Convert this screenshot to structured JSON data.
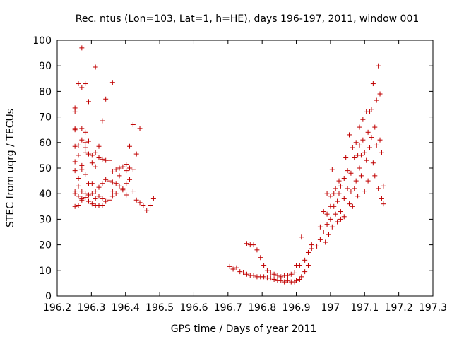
{
  "chart_data": {
    "type": "scatter",
    "title": "Rec. ntus (Lon=103, Lat=1, h=HE), days 196-197, 2011, window 001",
    "xlabel": "GPS time / Days of year 2011",
    "ylabel": "STEC from uqrg / TECUs",
    "xlim": [
      196.2,
      197.3
    ],
    "ylim": [
      0,
      100
    ],
    "xticks": [
      "196.2",
      "196.3",
      "196.4",
      "196.5",
      "196.6",
      "196.7",
      "196.8",
      "196.9",
      "197",
      "197.1",
      "197.2",
      "197.3"
    ],
    "yticks": [
      "0",
      "10",
      "20",
      "30",
      "40",
      "50",
      "60",
      "70",
      "80",
      "90",
      "100"
    ],
    "grid": false,
    "legend": "none",
    "marker": "+",
    "color": "#c00000",
    "points": [
      [
        196.252,
        73.5
      ],
      [
        196.252,
        72
      ],
      [
        196.252,
        65.5
      ],
      [
        196.252,
        65
      ],
      [
        196.252,
        58.5
      ],
      [
        196.252,
        52.5
      ],
      [
        196.252,
        49
      ],
      [
        196.252,
        41
      ],
      [
        196.252,
        40
      ],
      [
        196.252,
        35
      ],
      [
        196.262,
        83
      ],
      [
        196.262,
        59
      ],
      [
        196.262,
        55
      ],
      [
        196.262,
        46
      ],
      [
        196.262,
        43
      ],
      [
        196.262,
        39
      ],
      [
        196.262,
        35.5
      ],
      [
        196.272,
        97
      ],
      [
        196.272,
        81.5
      ],
      [
        196.272,
        65.5
      ],
      [
        196.272,
        61
      ],
      [
        196.272,
        51
      ],
      [
        196.272,
        49.5
      ],
      [
        196.272,
        41
      ],
      [
        196.272,
        38
      ],
      [
        196.272,
        37.5
      ],
      [
        196.282,
        83
      ],
      [
        196.282,
        64
      ],
      [
        196.282,
        60
      ],
      [
        196.282,
        58
      ],
      [
        196.282,
        56
      ],
      [
        196.282,
        47.5
      ],
      [
        196.282,
        40
      ],
      [
        196.282,
        38.5
      ],
      [
        196.292,
        76
      ],
      [
        196.292,
        60.5
      ],
      [
        196.292,
        55.5
      ],
      [
        196.292,
        44
      ],
      [
        196.292,
        39.5
      ],
      [
        196.292,
        37
      ],
      [
        196.302,
        55
      ],
      [
        196.302,
        52
      ],
      [
        196.302,
        44
      ],
      [
        196.302,
        40
      ],
      [
        196.302,
        36
      ],
      [
        196.312,
        89.5
      ],
      [
        196.312,
        56
      ],
      [
        196.312,
        50.5
      ],
      [
        196.312,
        41
      ],
      [
        196.312,
        38
      ],
      [
        196.312,
        35.5
      ],
      [
        196.322,
        58.5
      ],
      [
        196.322,
        54
      ],
      [
        196.322,
        42.5
      ],
      [
        196.322,
        39
      ],
      [
        196.322,
        35.5
      ],
      [
        196.332,
        68.5
      ],
      [
        196.332,
        53.5
      ],
      [
        196.332,
        44
      ],
      [
        196.332,
        38
      ],
      [
        196.332,
        35.5
      ],
      [
        196.342,
        77
      ],
      [
        196.342,
        53
      ],
      [
        196.342,
        45.5
      ],
      [
        196.342,
        37
      ],
      [
        196.352,
        53
      ],
      [
        196.352,
        45
      ],
      [
        196.352,
        37.5
      ],
      [
        196.362,
        83.5
      ],
      [
        196.362,
        48.5
      ],
      [
        196.362,
        44.5
      ],
      [
        196.362,
        41
      ],
      [
        196.362,
        39
      ],
      [
        196.372,
        49.5
      ],
      [
        196.372,
        44
      ],
      [
        196.372,
        40
      ],
      [
        196.382,
        50
      ],
      [
        196.382,
        47
      ],
      [
        196.382,
        43
      ],
      [
        196.392,
        50.5
      ],
      [
        196.392,
        42
      ],
      [
        196.392,
        41.5
      ],
      [
        196.402,
        51.5
      ],
      [
        196.402,
        49
      ],
      [
        196.402,
        44
      ],
      [
        196.402,
        39.5
      ],
      [
        196.412,
        58.5
      ],
      [
        196.412,
        50
      ],
      [
        196.412,
        45.5
      ],
      [
        196.422,
        67
      ],
      [
        196.422,
        49.5
      ],
      [
        196.422,
        41
      ],
      [
        196.432,
        55.5
      ],
      [
        196.432,
        37.5
      ],
      [
        196.442,
        65.5
      ],
      [
        196.442,
        36.5
      ],
      [
        196.452,
        35.5
      ],
      [
        196.462,
        33.5
      ],
      [
        196.472,
        35.5
      ],
      [
        196.482,
        38
      ],
      [
        196.705,
        11.5
      ],
      [
        196.715,
        10.5
      ],
      [
        196.725,
        11
      ],
      [
        196.735,
        9.5
      ],
      [
        196.745,
        9
      ],
      [
        196.755,
        20.5
      ],
      [
        196.755,
        8.5
      ],
      [
        196.765,
        20
      ],
      [
        196.765,
        8
      ],
      [
        196.775,
        20
      ],
      [
        196.775,
        8
      ],
      [
        196.785,
        18
      ],
      [
        196.785,
        7.5
      ],
      [
        196.795,
        15
      ],
      [
        196.795,
        7.5
      ],
      [
        196.805,
        12
      ],
      [
        196.805,
        7.5
      ],
      [
        196.815,
        10
      ],
      [
        196.815,
        7
      ],
      [
        196.825,
        9
      ],
      [
        196.825,
        7
      ],
      [
        196.835,
        8.5
      ],
      [
        196.835,
        6.5
      ],
      [
        196.845,
        8
      ],
      [
        196.845,
        6
      ],
      [
        196.855,
        7.5
      ],
      [
        196.855,
        6
      ],
      [
        196.865,
        8
      ],
      [
        196.865,
        5.5
      ],
      [
        196.875,
        8
      ],
      [
        196.875,
        6
      ],
      [
        196.885,
        8.5
      ],
      [
        196.885,
        5.5
      ],
      [
        196.895,
        9
      ],
      [
        196.895,
        5.5
      ],
      [
        196.9,
        12
      ],
      [
        196.9,
        6
      ],
      [
        196.91,
        12
      ],
      [
        196.91,
        6.5
      ],
      [
        196.915,
        23
      ],
      [
        196.915,
        7.5
      ],
      [
        196.925,
        14
      ],
      [
        196.925,
        9.5
      ],
      [
        196.935,
        17
      ],
      [
        196.935,
        12
      ],
      [
        196.945,
        20
      ],
      [
        196.945,
        18.5
      ],
      [
        196.96,
        19.5
      ],
      [
        196.97,
        27
      ],
      [
        196.97,
        22
      ],
      [
        196.98,
        33
      ],
      [
        196.98,
        25
      ],
      [
        196.985,
        21
      ],
      [
        196.99,
        40
      ],
      [
        196.99,
        32
      ],
      [
        196.99,
        28
      ],
      [
        196.995,
        24
      ],
      [
        197.0,
        39
      ],
      [
        197.0,
        35
      ],
      [
        197.0,
        30
      ],
      [
        197.005,
        49.5
      ],
      [
        197.005,
        27
      ],
      [
        197.01,
        40
      ],
      [
        197.01,
        35
      ],
      [
        197.015,
        42
      ],
      [
        197.015,
        32
      ],
      [
        197.02,
        37
      ],
      [
        197.02,
        29
      ],
      [
        197.025,
        45
      ],
      [
        197.025,
        40
      ],
      [
        197.03,
        43
      ],
      [
        197.03,
        33
      ],
      [
        197.03,
        30
      ],
      [
        197.04,
        46
      ],
      [
        197.04,
        38
      ],
      [
        197.04,
        31
      ],
      [
        197.045,
        54
      ],
      [
        197.05,
        49
      ],
      [
        197.05,
        42
      ],
      [
        197.055,
        63
      ],
      [
        197.055,
        36
      ],
      [
        197.06,
        48
      ],
      [
        197.06,
        41
      ],
      [
        197.065,
        58
      ],
      [
        197.065,
        35
      ],
      [
        197.07,
        54
      ],
      [
        197.07,
        42
      ],
      [
        197.075,
        60
      ],
      [
        197.075,
        45
      ],
      [
        197.08,
        55
      ],
      [
        197.08,
        39
      ],
      [
        197.085,
        66
      ],
      [
        197.085,
        59
      ],
      [
        197.085,
        50
      ],
      [
        197.09,
        55
      ],
      [
        197.09,
        47
      ],
      [
        197.095,
        69
      ],
      [
        197.095,
        61
      ],
      [
        197.1,
        56
      ],
      [
        197.1,
        41
      ],
      [
        197.105,
        72
      ],
      [
        197.105,
        53
      ],
      [
        197.11,
        64
      ],
      [
        197.11,
        45
      ],
      [
        197.115,
        72
      ],
      [
        197.115,
        58
      ],
      [
        197.12,
        73
      ],
      [
        197.12,
        62
      ],
      [
        197.125,
        83
      ],
      [
        197.125,
        52
      ],
      [
        197.13,
        66
      ],
      [
        197.13,
        47
      ],
      [
        197.135,
        76.5
      ],
      [
        197.135,
        59
      ],
      [
        197.14,
        90
      ],
      [
        197.14,
        42
      ],
      [
        197.145,
        79
      ],
      [
        197.145,
        61
      ],
      [
        197.15,
        56
      ],
      [
        197.15,
        38
      ],
      [
        197.155,
        43
      ],
      [
        197.155,
        36
      ]
    ]
  }
}
